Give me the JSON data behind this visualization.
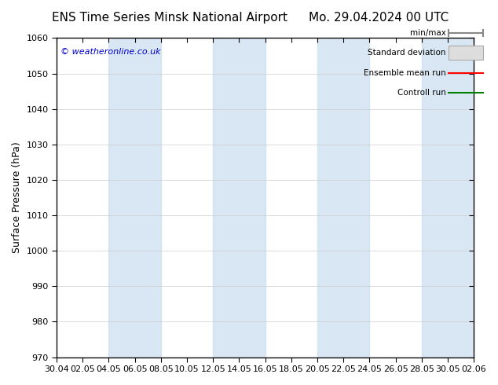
{
  "title_left": "ENS Time Series Minsk National Airport",
  "title_right": "Mo. 29.04.2024 00 UTC",
  "ylabel": "Surface Pressure (hPa)",
  "ylim": [
    970,
    1060
  ],
  "yticks": [
    970,
    980,
    990,
    1000,
    1010,
    1020,
    1030,
    1040,
    1050,
    1060
  ],
  "xlabels": [
    "30.04",
    "02.05",
    "04.05",
    "06.05",
    "08.05",
    "10.05",
    "12.05",
    "14.05",
    "16.05",
    "18.05",
    "20.05",
    "22.05",
    "24.05",
    "26.05",
    "28.05",
    "30.05",
    "02.06"
  ],
  "n_ticks": 17,
  "bg_color": "#ffffff",
  "plot_bg_color": "#ffffff",
  "band_color": "#cce0f0",
  "band_alpha": 0.75,
  "watermark": "© weatheronline.co.uk",
  "legend_items": [
    "min/max",
    "Standard deviation",
    "Ensemble mean run",
    "Controll run"
  ],
  "legend_colors": [
    "#aaaaaa",
    "#cccccc",
    "#ff0000",
    "#008000"
  ],
  "title_fontsize": 11,
  "tick_fontsize": 8,
  "ylabel_fontsize": 9
}
